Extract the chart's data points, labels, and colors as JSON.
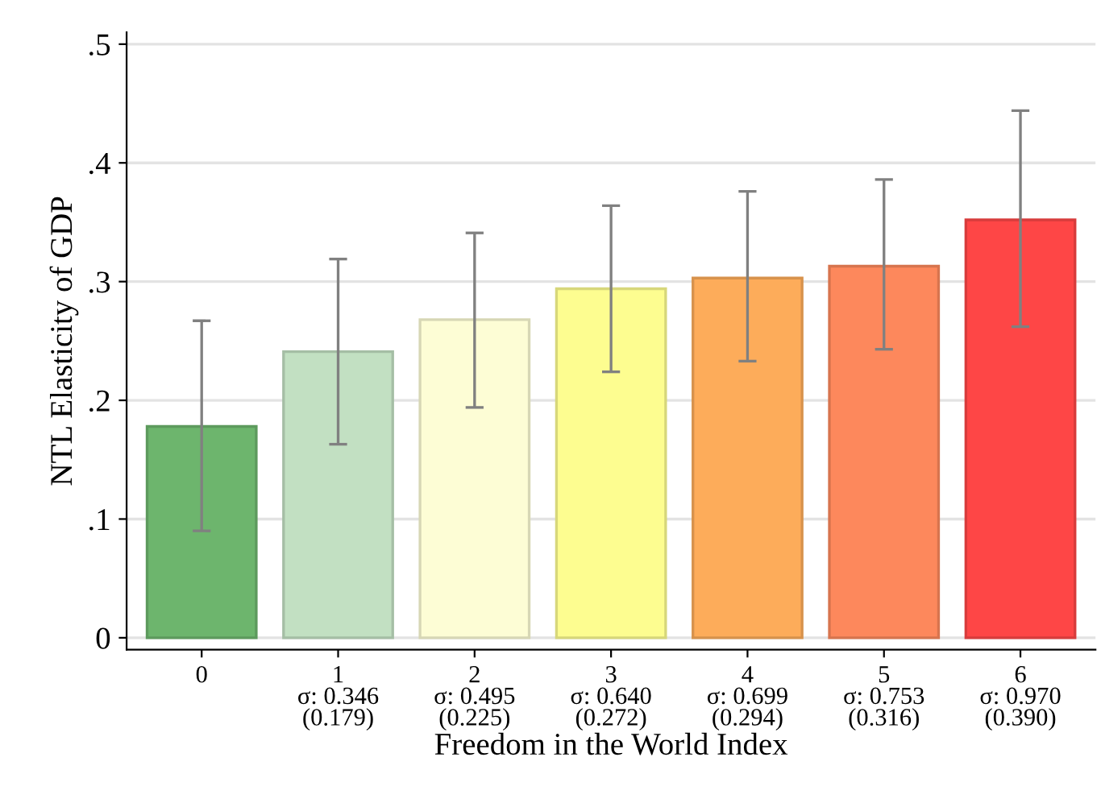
{
  "chart_data": {
    "type": "bar",
    "xlabel": "Freedom in the World Index",
    "ylabel": "NTL Elasticity of GDP",
    "categories": [
      "0",
      "1\nσ: 0.346\n(0.179)",
      "2\nσ: 0.495\n(0.225)",
      "3\nσ: 0.640\n(0.272)",
      "4\nσ: 0.699\n(0.294)",
      "5\nσ: 0.753\n(0.316)",
      "6\nσ: 0.970\n(0.390)"
    ],
    "values": [
      0.178,
      0.241,
      0.268,
      0.294,
      0.303,
      0.313,
      0.352
    ],
    "errors": [
      [
        0.09,
        0.267
      ],
      [
        0.163,
        0.319
      ],
      [
        0.194,
        0.341
      ],
      [
        0.224,
        0.364
      ],
      [
        0.233,
        0.376
      ],
      [
        0.243,
        0.386
      ],
      [
        0.262,
        0.444
      ]
    ],
    "colors": [
      "#6db56d",
      "#c2e0c2",
      "#fdfdd5",
      "#fdfd90",
      "#fdac5a",
      "#fd885c",
      "#fe4646"
    ],
    "ylim": [
      -0.01,
      0.51
    ],
    "yticks": [
      {
        "value": 0,
        "label": "0"
      },
      {
        "value": 0.1,
        "label": ".1"
      },
      {
        "value": 0.2,
        "label": ".2"
      },
      {
        "value": 0.3,
        "label": ".3"
      },
      {
        "value": 0.4,
        "label": ".4"
      },
      {
        "value": 0.5,
        "label": ".5"
      }
    ],
    "grid": "y",
    "legend": false
  }
}
